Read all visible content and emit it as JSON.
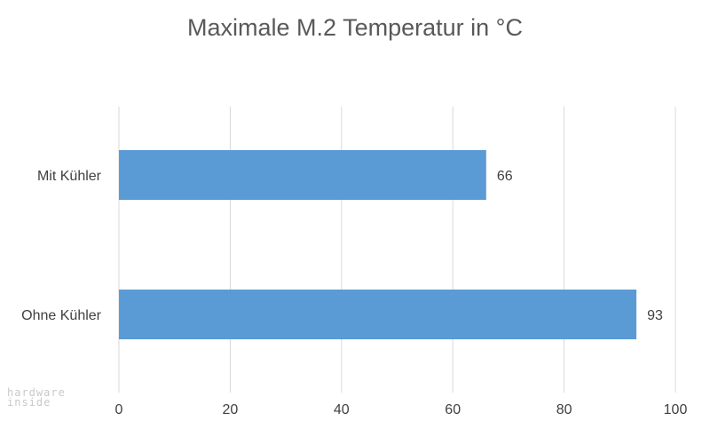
{
  "watermark": {
    "line1": "hardware",
    "line2": "inside"
  },
  "chart_data": {
    "type": "bar",
    "orientation": "horizontal",
    "title": "Maximale M.2 Temperatur in °C",
    "categories": [
      "Mit Kühler",
      "Ohne Kühler"
    ],
    "values": [
      66,
      93
    ],
    "data_labels": [
      "66",
      "93"
    ],
    "xlim": [
      0,
      100
    ],
    "x_ticks": [
      0,
      20,
      40,
      60,
      80,
      100
    ],
    "grid": "vertical",
    "legend": "none",
    "colors": {
      "bar": "#5b9bd5",
      "grid": "#d9d9d9",
      "text": "#595959"
    }
  }
}
